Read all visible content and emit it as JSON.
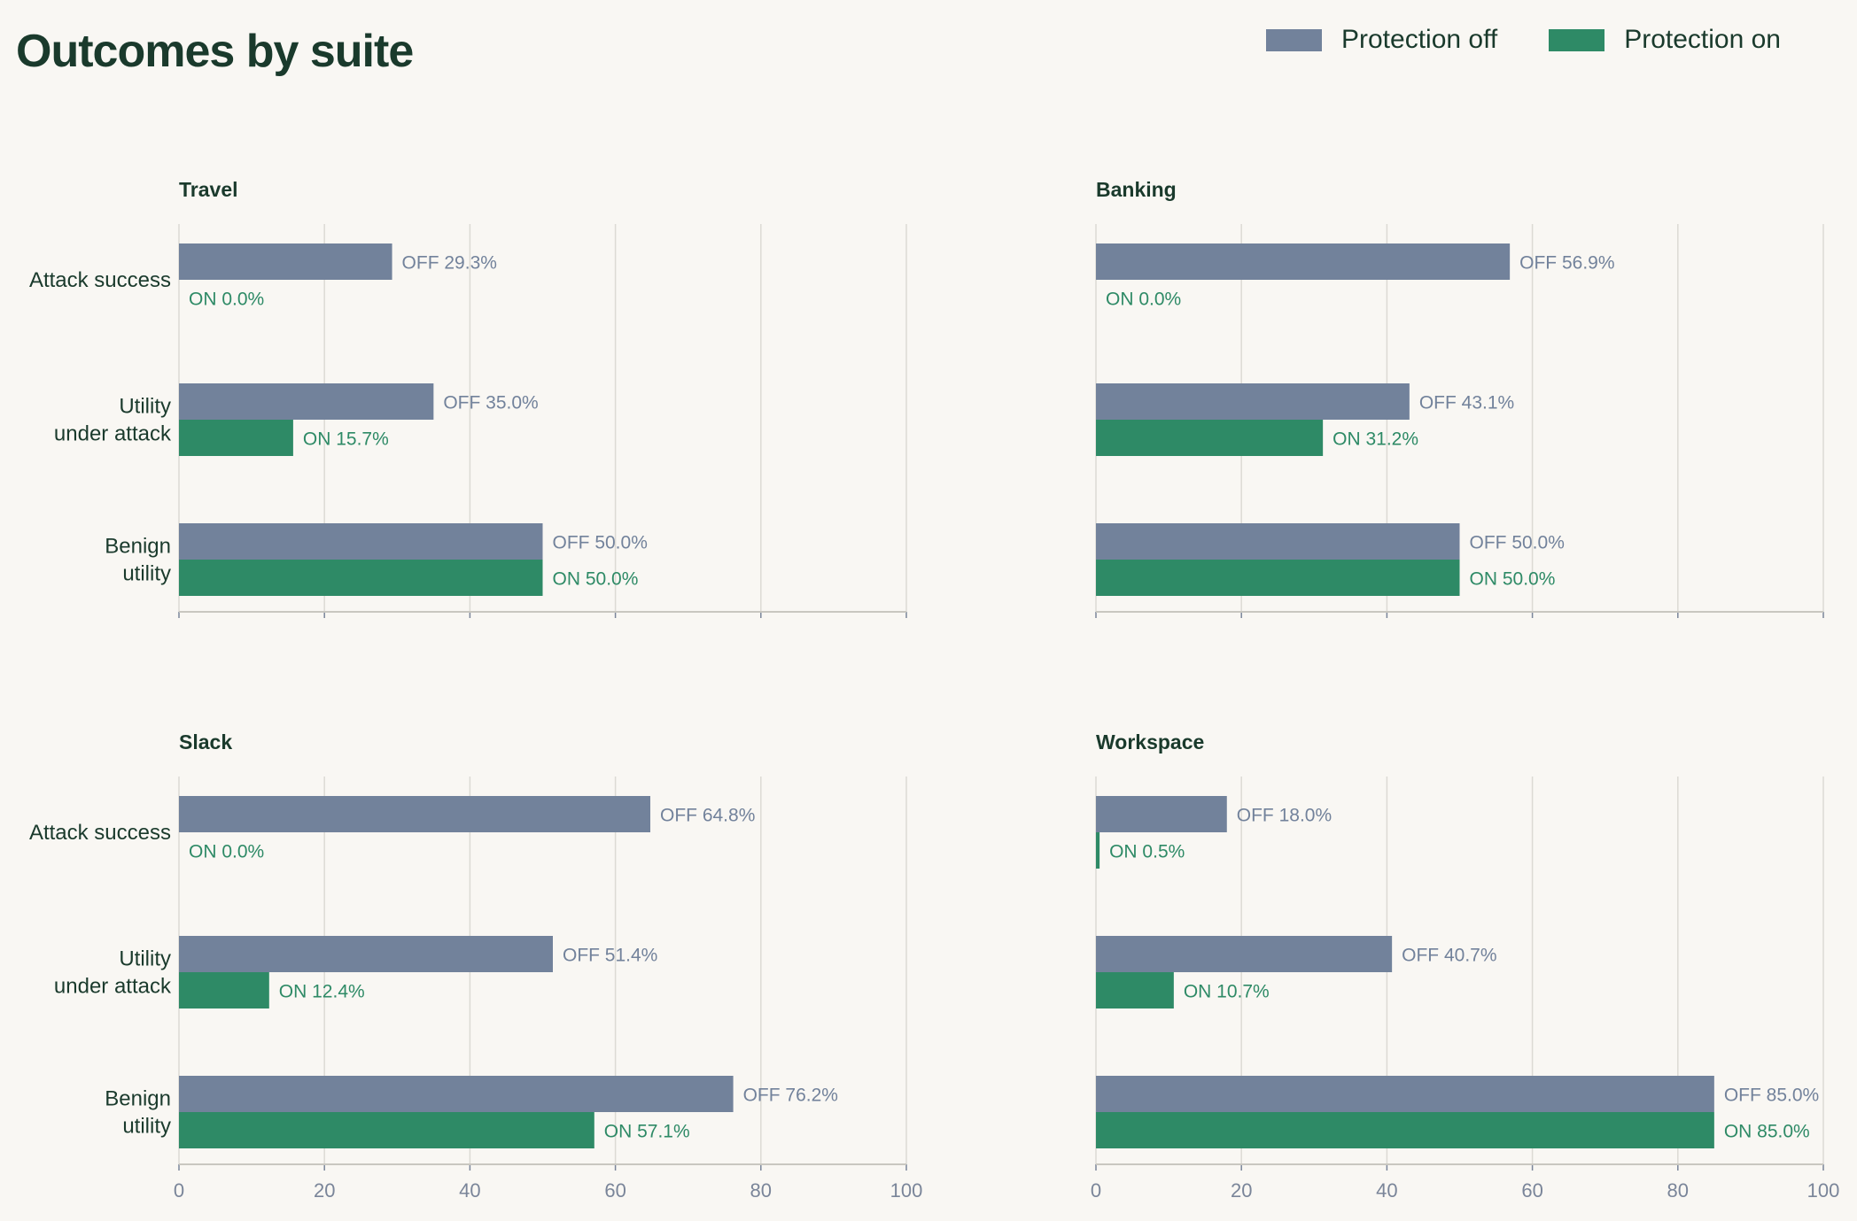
{
  "title": "Outcomes by suite",
  "legend": {
    "off_label": "Protection off",
    "on_label": "Protection on"
  },
  "colors": {
    "off": "#72829b",
    "on": "#2e8a66",
    "title": "#1a3a2c",
    "tick": "#7a8599",
    "grid": "#dcdad4",
    "axis": "#c9c7c0",
    "background": "#f9f7f3"
  },
  "chart_data": [
    {
      "type": "bar",
      "orientation": "horizontal",
      "title": "Travel",
      "categories": [
        "Attack success",
        "Utility\nunder attack",
        "Benign\nutility"
      ],
      "series": [
        {
          "name": "Protection off",
          "values": [
            29.3,
            35.0,
            50.0
          ]
        },
        {
          "name": "Protection on",
          "values": [
            0.0,
            15.7,
            50.0
          ]
        }
      ],
      "data_labels": [
        [
          "OFF 29.3%",
          "OFF 35.0%",
          "OFF 50.0%"
        ],
        [
          "ON 0.0%",
          "ON 15.7%",
          "ON 50.0%"
        ]
      ],
      "xlim": [
        0,
        100
      ],
      "xticks": [
        0,
        20,
        40,
        60,
        80,
        100
      ],
      "show_xtick_labels": false,
      "show_ytick_labels": true,
      "grid": "vertical"
    },
    {
      "type": "bar",
      "orientation": "horizontal",
      "title": "Banking",
      "categories": [
        "Attack success",
        "Utility\nunder attack",
        "Benign\nutility"
      ],
      "series": [
        {
          "name": "Protection off",
          "values": [
            56.9,
            43.1,
            50.0
          ]
        },
        {
          "name": "Protection on",
          "values": [
            0.0,
            31.2,
            50.0
          ]
        }
      ],
      "data_labels": [
        [
          "OFF 56.9%",
          "OFF 43.1%",
          "OFF 50.0%"
        ],
        [
          "ON 0.0%",
          "ON 31.2%",
          "ON 50.0%"
        ]
      ],
      "xlim": [
        0,
        100
      ],
      "xticks": [
        0,
        20,
        40,
        60,
        80,
        100
      ],
      "show_xtick_labels": false,
      "show_ytick_labels": false,
      "grid": "vertical"
    },
    {
      "type": "bar",
      "orientation": "horizontal",
      "title": "Slack",
      "categories": [
        "Attack success",
        "Utility\nunder attack",
        "Benign\nutility"
      ],
      "series": [
        {
          "name": "Protection off",
          "values": [
            64.8,
            51.4,
            76.2
          ]
        },
        {
          "name": "Protection on",
          "values": [
            0.0,
            12.4,
            57.1
          ]
        }
      ],
      "data_labels": [
        [
          "OFF 64.8%",
          "OFF 51.4%",
          "OFF 76.2%"
        ],
        [
          "ON 0.0%",
          "ON 12.4%",
          "ON 57.1%"
        ]
      ],
      "xlim": [
        0,
        100
      ],
      "xticks": [
        0,
        20,
        40,
        60,
        80,
        100
      ],
      "show_xtick_labels": true,
      "show_ytick_labels": true,
      "grid": "vertical"
    },
    {
      "type": "bar",
      "orientation": "horizontal",
      "title": "Workspace",
      "categories": [
        "Attack success",
        "Utility\nunder attack",
        "Benign\nutility"
      ],
      "series": [
        {
          "name": "Protection off",
          "values": [
            18.0,
            40.7,
            85.0
          ]
        },
        {
          "name": "Protection on",
          "values": [
            0.5,
            10.7,
            85.0
          ]
        }
      ],
      "data_labels": [
        [
          "OFF 18.0%",
          "OFF 40.7%",
          "OFF 85.0%"
        ],
        [
          "ON 0.5%",
          "ON 10.7%",
          "ON 85.0%"
        ]
      ],
      "xlim": [
        0,
        100
      ],
      "xticks": [
        0,
        20,
        40,
        60,
        80,
        100
      ],
      "show_xtick_labels": true,
      "show_ytick_labels": false,
      "grid": "vertical"
    }
  ]
}
